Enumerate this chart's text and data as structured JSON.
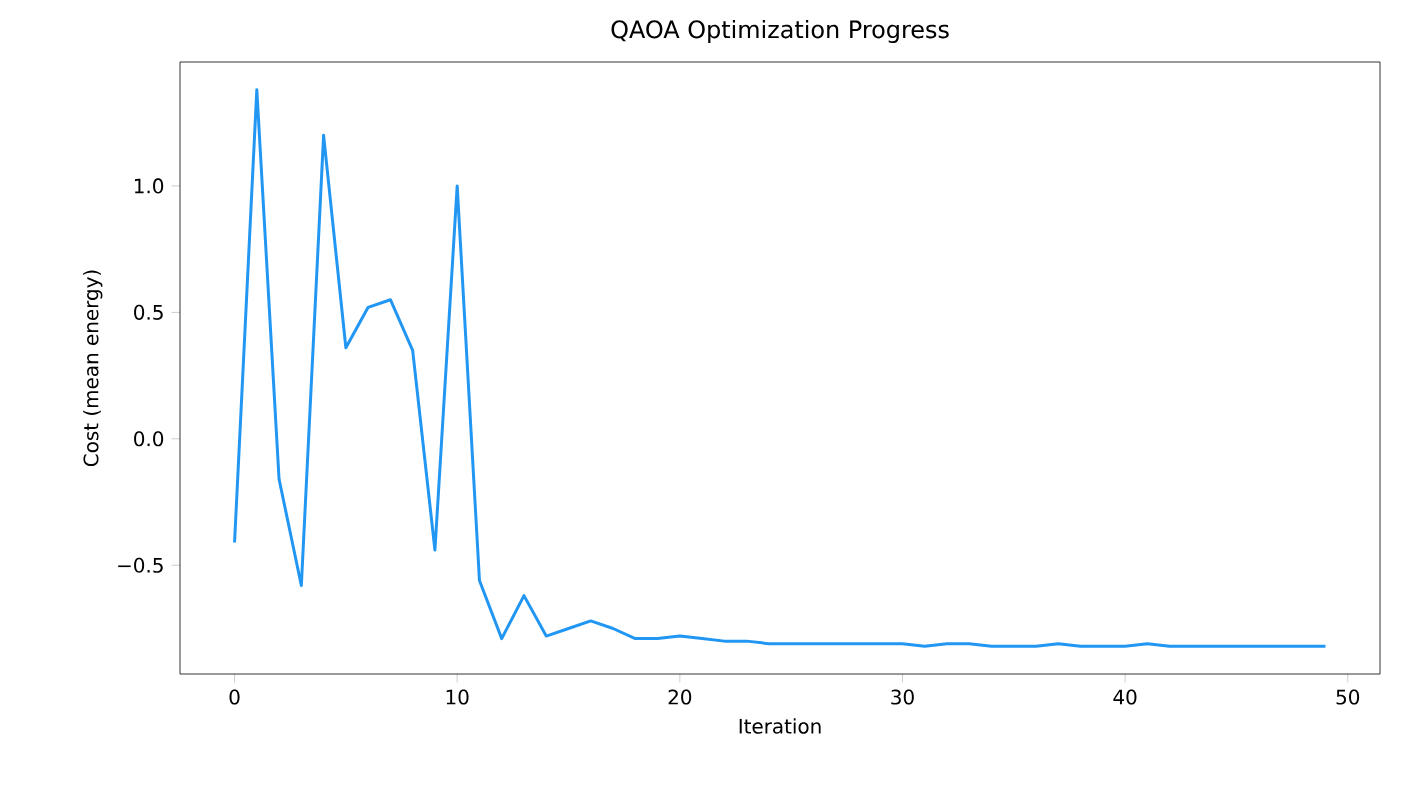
{
  "chart_data": {
    "type": "line",
    "title": "QAOA Optimization Progress",
    "xlabel": "Iteration",
    "ylabel": "Cost (mean energy)",
    "x": [
      0,
      1,
      2,
      3,
      4,
      5,
      6,
      7,
      8,
      9,
      10,
      11,
      12,
      13,
      14,
      15,
      16,
      17,
      18,
      19,
      20,
      21,
      22,
      23,
      24,
      25,
      26,
      27,
      28,
      29,
      30,
      31,
      32,
      33,
      34,
      35,
      36,
      37,
      38,
      39,
      40,
      41,
      42,
      43,
      44,
      45,
      46,
      47,
      48,
      49
    ],
    "series": [
      {
        "color": "#2196f3",
        "values": [
          -0.41,
          1.38,
          -0.16,
          -0.58,
          1.2,
          0.36,
          0.52,
          0.55,
          0.35,
          -0.44,
          1.0,
          -0.56,
          -0.79,
          -0.62,
          -0.78,
          -0.75,
          -0.72,
          -0.75,
          -0.79,
          -0.79,
          -0.78,
          -0.79,
          -0.8,
          -0.8,
          -0.81,
          -0.81,
          -0.81,
          -0.81,
          -0.81,
          -0.81,
          -0.81,
          -0.82,
          -0.81,
          -0.81,
          -0.82,
          -0.82,
          -0.82,
          -0.81,
          -0.82,
          -0.82,
          -0.82,
          -0.81,
          -0.82,
          -0.82,
          -0.82,
          -0.82,
          -0.82,
          -0.82,
          -0.82,
          -0.82
        ]
      }
    ],
    "xlim": [
      -2.45,
      51.45
    ],
    "ylim": [
      -0.93,
      1.49
    ],
    "xticks": [
      0,
      10,
      20,
      30,
      40,
      50
    ],
    "yticks": [
      {
        "value": -0.5,
        "label": "−0.5"
      },
      {
        "value": 0,
        "label": "0.0"
      },
      {
        "value": 0.5,
        "label": "0.5"
      },
      {
        "value": 1,
        "label": "1.0"
      }
    ],
    "grid": false,
    "marker": "none",
    "line_style": "solid"
  }
}
